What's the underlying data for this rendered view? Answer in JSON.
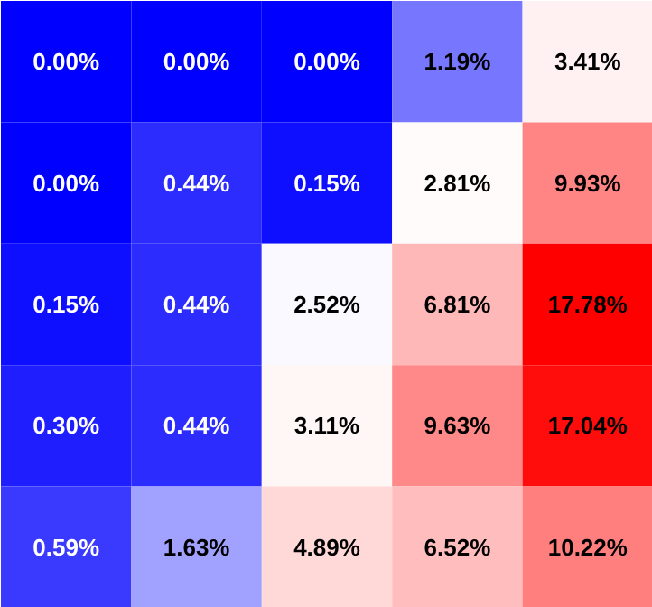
{
  "chart_data": {
    "type": "heatmap",
    "categories": [
      null,
      null,
      null,
      null,
      null
    ],
    "y_categories": [
      null,
      null,
      null,
      null,
      null
    ],
    "cells": [
      [
        0.0,
        0.0,
        0.0,
        1.19,
        3.41
      ],
      [
        0.0,
        0.44,
        0.15,
        2.81,
        9.93
      ],
      [
        0.15,
        0.44,
        2.52,
        6.81,
        17.78
      ],
      [
        0.3,
        0.44,
        3.11,
        9.63,
        17.04
      ],
      [
        0.59,
        1.63,
        4.89,
        6.52,
        10.22
      ]
    ],
    "cell_labels": [
      [
        "0.00%",
        "0.00%",
        "0.00%",
        "1.19%",
        "3.41%"
      ],
      [
        "0.00%",
        "0.44%",
        "0.15%",
        "2.81%",
        "9.93%"
      ],
      [
        "0.15%",
        "0.44%",
        "2.52%",
        "6.81%",
        "17.78%"
      ],
      [
        "0.30%",
        "0.44%",
        "3.11%",
        "9.63%",
        "17.04%"
      ],
      [
        "0.59%",
        "1.63%",
        "4.89%",
        "6.52%",
        "10.22%"
      ]
    ]
  }
}
